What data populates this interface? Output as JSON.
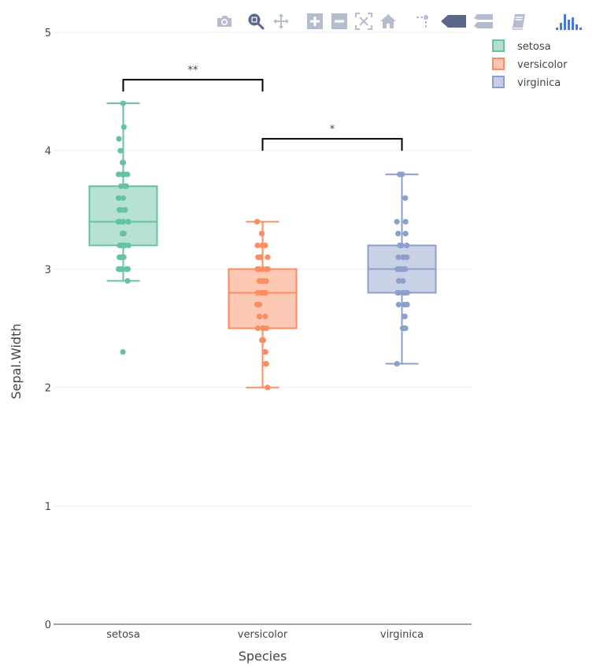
{
  "toolbar": {
    "buttons": [
      {
        "name": "download-plot-as-png",
        "icon": "camera-icon"
      },
      {
        "name": "zoom",
        "icon": "zoom-icon",
        "active": true
      },
      {
        "name": "pan",
        "icon": "pan-icon"
      },
      {
        "name": "zoom-in",
        "icon": "zoom-in-icon"
      },
      {
        "name": "zoom-out",
        "icon": "zoom-out-icon"
      },
      {
        "name": "autoscale",
        "icon": "autoscale-icon"
      },
      {
        "name": "reset-axes",
        "icon": "home-icon"
      },
      {
        "name": "toggle-spike-lines",
        "icon": "spikelines-icon"
      },
      {
        "name": "show-closest-data-on-hover",
        "icon": "hover-closest-icon",
        "active": true
      },
      {
        "name": "compare-data-on-hover",
        "icon": "hover-compare-icon"
      },
      {
        "name": "edit-chart",
        "icon": "edit-chart-icon"
      },
      {
        "name": "plotly-logo",
        "icon": "plotly-logo-icon"
      }
    ],
    "colors": {
      "inactive": "#b6bcd0",
      "active": "#5b6788",
      "logo": "#447adb"
    }
  },
  "chart_data": {
    "type": "box",
    "title": "",
    "xlabel": "Species",
    "ylabel": "Sepal.Width",
    "categories": [
      "setosa",
      "versicolor",
      "virginica"
    ],
    "ylim": [
      0,
      5
    ],
    "yticks": [
      0,
      1,
      2,
      3,
      4,
      5
    ],
    "grid": true,
    "legend_position": "top-right",
    "series": [
      {
        "name": "setosa",
        "color": "#66c2a5",
        "fill": "#b3e0d1",
        "q1": 3.2,
        "median": 3.4,
        "q3": 3.7,
        "whisker_low": 2.9,
        "whisker_high": 4.4,
        "points": [
          4.4,
          4.2,
          4.1,
          4.0,
          3.9,
          3.9,
          3.8,
          3.8,
          3.8,
          3.8,
          3.7,
          3.7,
          3.7,
          3.6,
          3.6,
          3.5,
          3.5,
          3.5,
          3.5,
          3.4,
          3.4,
          3.4,
          3.4,
          3.4,
          3.4,
          3.4,
          3.4,
          3.4,
          3.3,
          3.3,
          3.2,
          3.2,
          3.2,
          3.2,
          3.2,
          3.1,
          3.1,
          3.1,
          3.1,
          3.0,
          3.0,
          3.0,
          3.0,
          3.0,
          3.0,
          2.9,
          2.3
        ]
      },
      {
        "name": "versicolor",
        "color": "#fc8d62",
        "fill": "#fec6b0",
        "q1": 2.5,
        "median": 2.8,
        "q3": 3.0,
        "whisker_low": 2.0,
        "whisker_high": 3.4,
        "points": [
          3.4,
          3.3,
          3.2,
          3.2,
          3.2,
          3.1,
          3.1,
          3.1,
          3.0,
          3.0,
          3.0,
          3.0,
          3.0,
          3.0,
          2.9,
          2.9,
          2.9,
          2.9,
          2.9,
          2.8,
          2.8,
          2.8,
          2.8,
          2.8,
          2.8,
          2.7,
          2.7,
          2.7,
          2.7,
          2.6,
          2.6,
          2.6,
          2.5,
          2.5,
          2.5,
          2.5,
          2.4,
          2.4,
          2.4,
          2.3,
          2.3,
          2.3,
          2.2,
          2.2,
          2.0
        ]
      },
      {
        "name": "virginica",
        "color": "#8da0cb",
        "fill": "#c6cfe5",
        "q1": 2.8,
        "median": 3.0,
        "q3": 3.2,
        "whisker_low": 2.2,
        "whisker_high": 3.8,
        "points": [
          3.8,
          3.8,
          3.6,
          3.4,
          3.4,
          3.3,
          3.3,
          3.2,
          3.2,
          3.2,
          3.2,
          3.1,
          3.1,
          3.1,
          3.1,
          3.0,
          3.0,
          3.0,
          3.0,
          3.0,
          3.0,
          3.0,
          2.9,
          2.9,
          2.8,
          2.8,
          2.8,
          2.8,
          2.8,
          2.8,
          2.7,
          2.7,
          2.7,
          2.7,
          2.6,
          2.6,
          2.5,
          2.5,
          2.5,
          2.5,
          2.2
        ]
      }
    ],
    "annotations": [
      {
        "label": "**",
        "from": "setosa",
        "to": "versicolor",
        "y": 4.6,
        "drop_to": 4.5
      },
      {
        "label": "*",
        "from": "versicolor",
        "to": "virginica",
        "y": 4.1,
        "drop_to": 4.0
      }
    ]
  }
}
